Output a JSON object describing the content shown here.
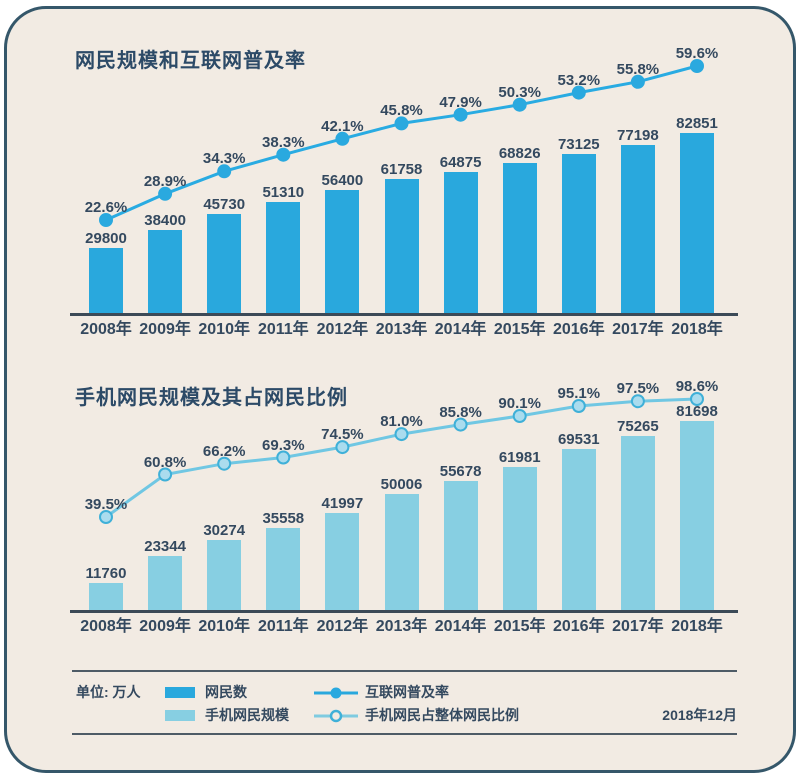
{
  "page": {
    "card_bg": "#f2ebe3",
    "card_border_color": "#35576a",
    "text_color": "#34495f",
    "axis_color": "#3c4a57"
  },
  "chart_data": [
    {
      "type": "bar+line",
      "title": "网民规模和互联网普及率",
      "unit": "万人",
      "categories": [
        "2008年",
        "2009年",
        "2010年",
        "2011年",
        "2012年",
        "2013年",
        "2014年",
        "2015年",
        "2016年",
        "2017年",
        "2018年"
      ],
      "bar_series": {
        "name": "网民数",
        "color": "#29a8dd",
        "values": [
          29800,
          38400,
          45730,
          51310,
          56400,
          61758,
          64875,
          68826,
          73125,
          77198,
          82851
        ]
      },
      "line_series": {
        "name": "互联网普及率",
        "color": "#29abe2",
        "dot_fill": "#2aa9df",
        "dot_stroke": "#2aa9df",
        "unit": "%",
        "values": [
          22.6,
          28.9,
          34.3,
          38.3,
          42.1,
          45.8,
          47.9,
          50.3,
          53.2,
          55.8,
          59.6
        ]
      },
      "grid": false,
      "value_labels_shown": true
    },
    {
      "type": "bar+line",
      "title": "手机网民规模及其占网民比例",
      "unit": "万人",
      "categories": [
        "2008年",
        "2009年",
        "2010年",
        "2011年",
        "2012年",
        "2013年",
        "2014年",
        "2015年",
        "2016年",
        "2017年",
        "2018年"
      ],
      "bar_series": {
        "name": "手机网民规模",
        "color": "#87cfe2",
        "values": [
          11760,
          23344,
          30274,
          35558,
          41997,
          50006,
          55678,
          61981,
          69531,
          75265,
          81698
        ]
      },
      "line_series": {
        "name": "手机网民占整体网民比例",
        "color": "#70c7e3",
        "dot_fill": "#aadcee",
        "dot_stroke": "#3fb0d8",
        "unit": "%",
        "values": [
          39.5,
          60.8,
          66.2,
          69.3,
          74.5,
          81.0,
          85.8,
          90.1,
          95.1,
          97.5,
          98.6
        ]
      },
      "grid": false,
      "value_labels_shown": true
    }
  ],
  "legend": {
    "unit_label": "单位: 万人",
    "date": "2018年12月",
    "items": [
      {
        "marker": "bar-swatch",
        "color": "#29a8dd",
        "label": "网民数"
      },
      {
        "marker": "bar-swatch",
        "color": "#87cfe2",
        "label": "手机网民规模"
      },
      {
        "marker": "line-dot-filled",
        "color": "#29a8dd",
        "dot_fill": "#2aa9df",
        "label": "互联网普及率"
      },
      {
        "marker": "line-dot-open",
        "color": "#7fcbe0",
        "dot_stroke": "#3fb0d8",
        "label": "手机网民占整体网民比例"
      }
    ]
  }
}
